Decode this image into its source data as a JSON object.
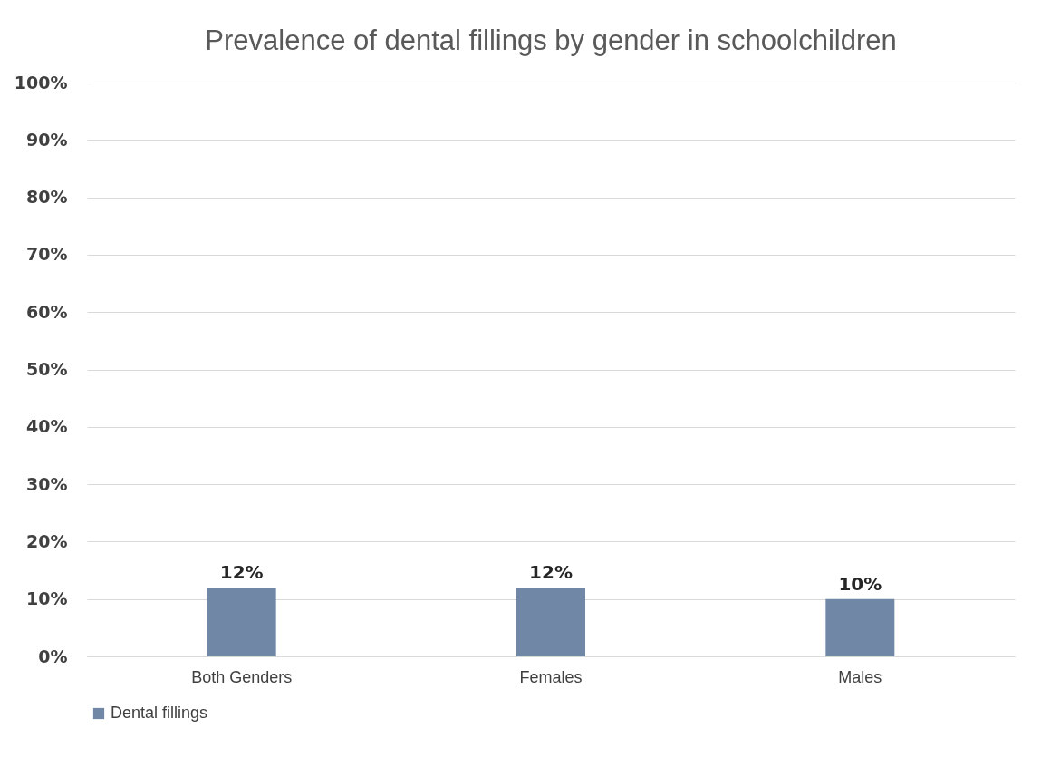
{
  "chart_data": {
    "type": "bar",
    "title": "Prevalence of dental fillings by gender in schoolchildren",
    "categories": [
      "Both Genders",
      "Females",
      "Males"
    ],
    "series": [
      {
        "name": "Dental fillings",
        "color": "#7088a6",
        "values": [
          12,
          12,
          10
        ],
        "value_labels": [
          "12%",
          "12%",
          "10%"
        ]
      }
    ],
    "ylim": [
      0,
      100
    ],
    "yticks": [
      {
        "value": 0,
        "label": "0%"
      },
      {
        "value": 10,
        "label": "10%"
      },
      {
        "value": 20,
        "label": "20%"
      },
      {
        "value": 30,
        "label": "30%"
      },
      {
        "value": 40,
        "label": "40%"
      },
      {
        "value": 50,
        "label": "50%"
      },
      {
        "value": 60,
        "label": "60%"
      },
      {
        "value": 70,
        "label": "70%"
      },
      {
        "value": 80,
        "label": "80%"
      },
      {
        "value": 90,
        "label": "90%"
      },
      {
        "value": 100,
        "label": "100%"
      }
    ],
    "grid": "y",
    "legend": "bottom"
  }
}
